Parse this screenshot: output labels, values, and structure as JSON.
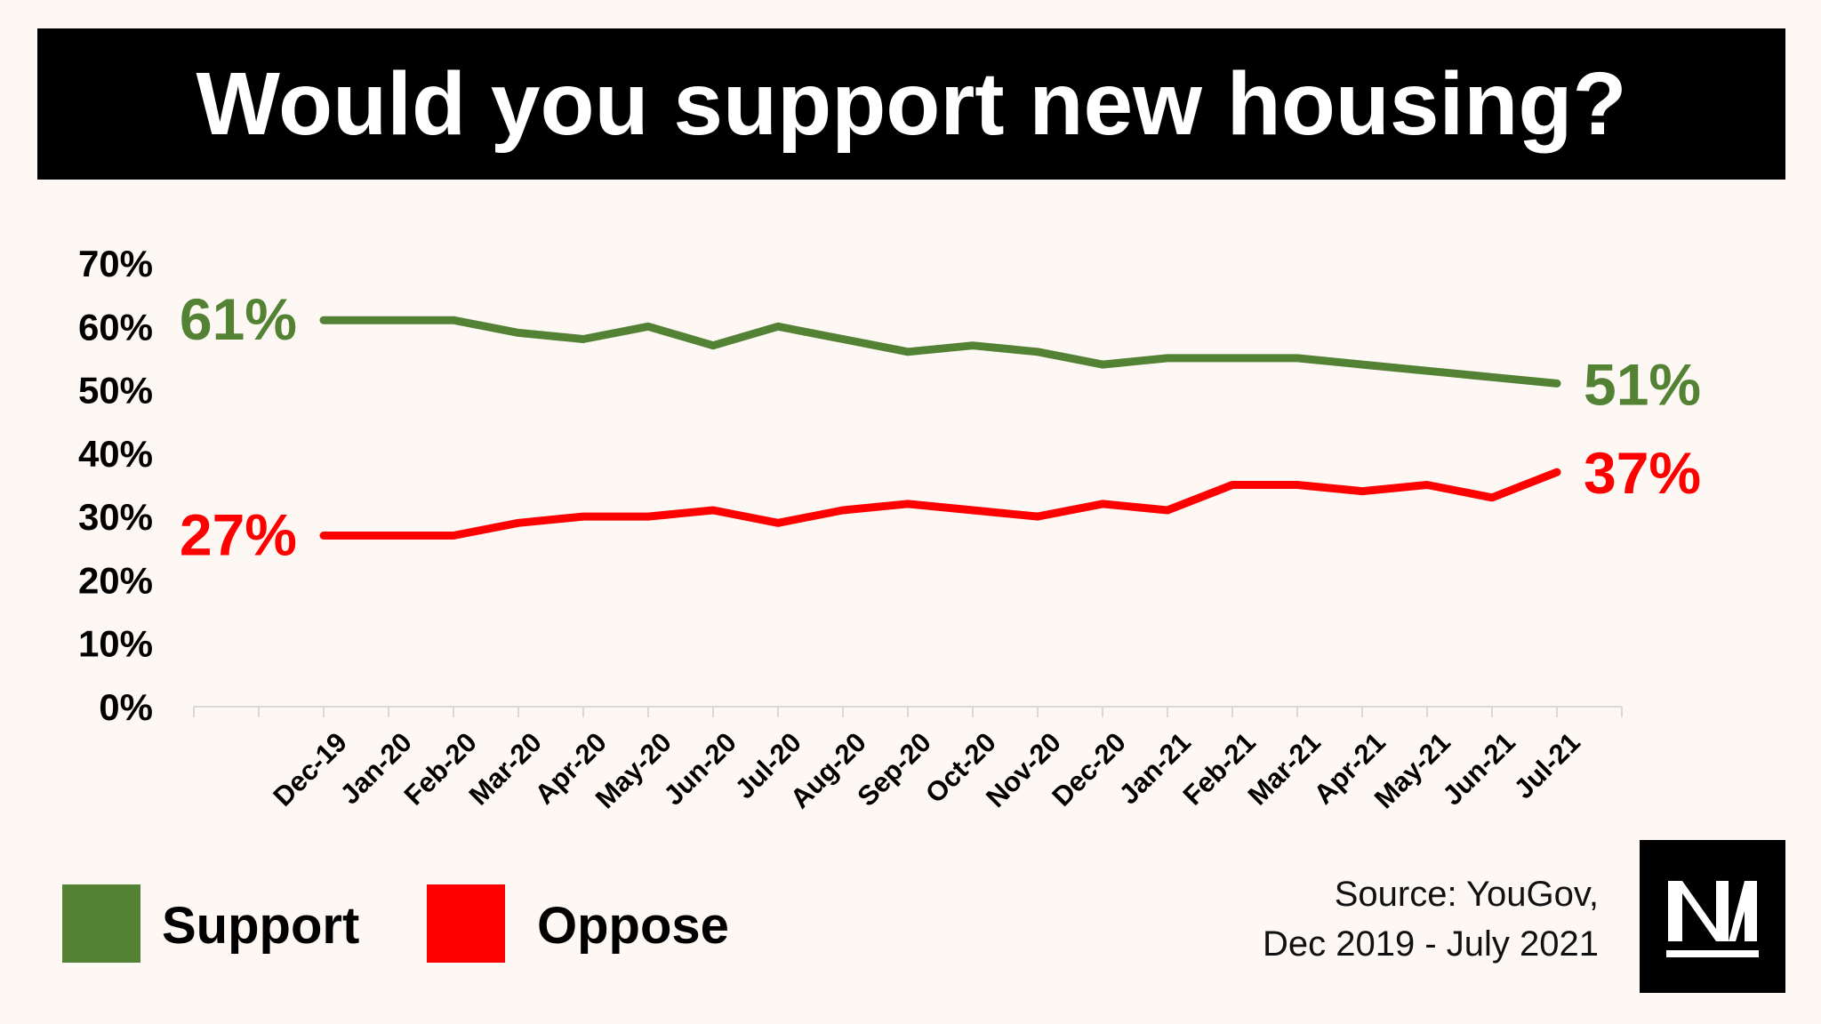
{
  "chart_data": {
    "type": "line",
    "title": "Would you support new housing?",
    "categories": [
      "Dec-19",
      "Jan-20",
      "Feb-20",
      "Mar-20",
      "Apr-20",
      "May-20",
      "Jun-20",
      "Jul-20",
      "Aug-20",
      "Sep-20",
      "Oct-20",
      "Nov-20",
      "Dec-20",
      "Jan-21",
      "Feb-21",
      "Mar-21",
      "Apr-21",
      "May-21",
      "Jun-21",
      "Jul-21"
    ],
    "series": [
      {
        "name": "Support",
        "color": "#548235",
        "values": [
          61,
          61,
          61,
          59,
          58,
          60,
          57,
          60,
          58,
          56,
          57,
          56,
          54,
          55,
          55,
          55,
          54,
          53,
          52,
          51
        ],
        "start_label": "61%",
        "end_label": "51%"
      },
      {
        "name": "Oppose",
        "color": "#ff0000",
        "values": [
          27,
          27,
          27,
          29,
          30,
          30,
          31,
          29,
          31,
          32,
          31,
          30,
          32,
          31,
          35,
          35,
          34,
          35,
          33,
          37
        ],
        "start_label": "27%",
        "end_label": "37%"
      }
    ],
    "yticks": [
      "0%",
      "10%",
      "20%",
      "30%",
      "40%",
      "50%",
      "60%",
      "70%"
    ],
    "ylim": [
      0,
      70
    ],
    "xlabel": "",
    "ylabel": ""
  },
  "legend": {
    "support": {
      "label": "Support",
      "color": "#548235"
    },
    "oppose": {
      "label": "Oppose",
      "color": "#ff0000"
    }
  },
  "source": {
    "line1": "Source: YouGov,",
    "line2": "Dec 2019 - July 2021"
  },
  "logo": {
    "name": "nm-logo-icon"
  }
}
